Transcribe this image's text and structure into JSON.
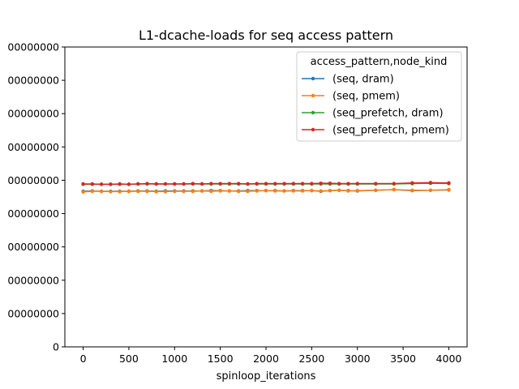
{
  "chart_data": {
    "type": "line",
    "title": "L1-dcache-loads for seq access pattern",
    "xlabel": "spinloop_iterations",
    "ylabel": "",
    "xlim": [
      -200,
      4200
    ],
    "ylim": [
      0,
      900000000
    ],
    "xticks": [
      0,
      500,
      1000,
      1500,
      2000,
      2500,
      3000,
      3500,
      4000
    ],
    "yticks": [
      0,
      100000000,
      200000000,
      300000000,
      400000000,
      500000000,
      600000000,
      700000000,
      800000000,
      900000000
    ],
    "ytick_labels": [
      "0",
      "00000000",
      "00000000",
      "00000000",
      "00000000",
      "00000000",
      "00000000",
      "00000000",
      "00000000",
      "00000000"
    ],
    "grid": false,
    "legend": {
      "title": "access_pattern,node_kind",
      "placement": "top-right"
    },
    "x": [
      0,
      100,
      200,
      300,
      400,
      500,
      600,
      700,
      800,
      900,
      1000,
      1100,
      1200,
      1300,
      1400,
      1500,
      1600,
      1700,
      1800,
      1900,
      2000,
      2100,
      2200,
      2300,
      2400,
      2500,
      2600,
      2700,
      2800,
      2900,
      3000,
      3200,
      3400,
      3600,
      3800,
      4000
    ],
    "series": [
      {
        "name": "(seq, dram)",
        "color": "#1f77b4",
        "values": [
          467000000,
          468000000,
          467000000,
          467000000,
          467000000,
          467000000,
          468000000,
          468000000,
          467000000,
          468000000,
          468000000,
          468000000,
          468000000,
          468000000,
          469000000,
          469000000,
          468000000,
          468000000,
          469000000,
          469000000,
          469000000,
          469000000,
          468000000,
          469000000,
          469000000,
          469000000,
          467000000,
          469000000,
          470000000,
          469000000,
          468000000,
          470000000,
          472000000,
          469000000,
          470000000,
          471000000
        ]
      },
      {
        "name": "(seq, pmem)",
        "color": "#ff7f0e",
        "values": [
          465000000,
          467000000,
          467000000,
          466000000,
          466000000,
          467000000,
          467000000,
          467000000,
          466000000,
          466000000,
          467000000,
          467000000,
          467000000,
          468000000,
          467000000,
          468000000,
          468000000,
          467000000,
          467000000,
          468000000,
          469000000,
          468000000,
          468000000,
          468000000,
          468000000,
          469000000,
          468000000,
          469000000,
          470000000,
          468000000,
          469000000,
          470000000,
          472000000,
          470000000,
          470000000,
          472000000
        ]
      },
      {
        "name": "(seq_prefetch, dram)",
        "color": "#2ca02c",
        "values": [
          488000000,
          488000000,
          488000000,
          488000000,
          488000000,
          488000000,
          489000000,
          489000000,
          489000000,
          489000000,
          489000000,
          489000000,
          489000000,
          489000000,
          489000000,
          489000000,
          489000000,
          489000000,
          489000000,
          489000000,
          489000000,
          489000000,
          489000000,
          489000000,
          489000000,
          489000000,
          489000000,
          489000000,
          489000000,
          489000000,
          489000000,
          489000000,
          489000000,
          490000000,
          491000000,
          490000000
        ]
      },
      {
        "name": "(seq_prefetch, pmem)",
        "color": "#d62728",
        "values": [
          489000000,
          489000000,
          488000000,
          488000000,
          489000000,
          488000000,
          489000000,
          490000000,
          489000000,
          489000000,
          489000000,
          489000000,
          490000000,
          489000000,
          490000000,
          490000000,
          490000000,
          490000000,
          489000000,
          490000000,
          490000000,
          490000000,
          490000000,
          490000000,
          490000000,
          490000000,
          491000000,
          491000000,
          490000000,
          490000000,
          490000000,
          490000000,
          490000000,
          492000000,
          493000000,
          492000000
        ]
      }
    ]
  }
}
